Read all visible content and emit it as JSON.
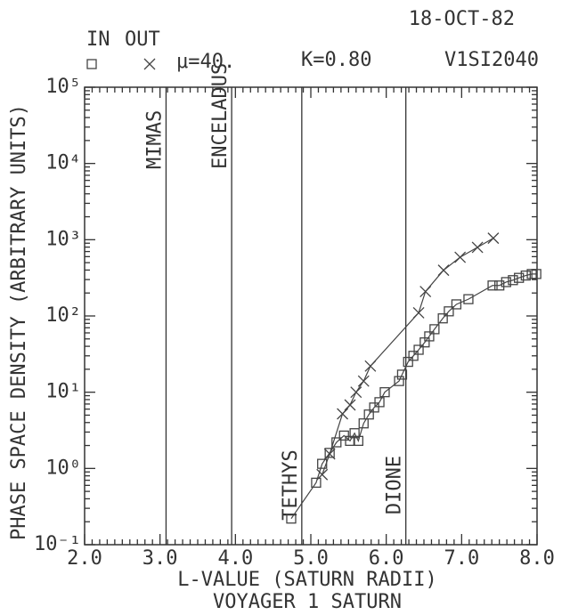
{
  "chart_data": {
    "type": "scatter",
    "date": "18-OCT-82",
    "mu": "μ=40.",
    "k": "K=0.80",
    "id": "V1SI2040",
    "xlabel": "L-VALUE (SATURN RADII)",
    "subtitle": "VOYAGER 1 SATURN",
    "ylabel": "PHASE SPACE DENSITY (ARBITRARY UNITS)",
    "log_y": true,
    "xlim": [
      2,
      8
    ],
    "ylim": [
      0.1,
      100000
    ],
    "xticks": [
      {
        "value": 2,
        "label": "2.0"
      },
      {
        "value": 3,
        "label": "3.0"
      },
      {
        "value": 4,
        "label": "4.0"
      },
      {
        "value": 5,
        "label": "5.0"
      },
      {
        "value": 6,
        "label": "6.0"
      },
      {
        "value": 7,
        "label": "7.0"
      },
      {
        "value": 8,
        "label": "8.0"
      }
    ],
    "yticks": [
      {
        "value": 0.1,
        "label": "10⁻¹"
      },
      {
        "value": 1,
        "label": "10⁰"
      },
      {
        "value": 10,
        "label": "10¹"
      },
      {
        "value": 100,
        "label": "10²"
      },
      {
        "value": 1000,
        "label": "10³"
      },
      {
        "value": 10000,
        "label": "10⁴"
      },
      {
        "value": 100000,
        "label": "10⁵"
      }
    ],
    "annotations": [
      {
        "label": "MIMAS",
        "x": 3.08
      },
      {
        "label": "ENCELADUS",
        "x": 3.95
      },
      {
        "label": "TETHYS",
        "x": 4.88
      },
      {
        "label": "DIONE",
        "x": 6.26
      }
    ],
    "series": [
      {
        "name": "IN",
        "marker": "square",
        "color": "#444",
        "x": [
          4.74,
          5.07,
          5.15,
          5.25,
          5.34,
          5.44,
          5.52,
          5.58,
          5.63,
          5.7,
          5.77,
          5.84,
          5.91,
          5.98,
          6.17,
          6.21,
          6.29,
          6.36,
          6.43,
          6.51,
          6.57,
          6.64,
          6.75,
          6.83,
          6.93,
          7.09,
          7.41,
          7.5,
          7.59,
          7.68,
          7.76,
          7.85,
          7.93,
          7.99
        ],
        "values": [
          0.22,
          0.65,
          1.15,
          1.6,
          2.2,
          2.7,
          2.3,
          2.9,
          2.3,
          3.9,
          5.1,
          6.3,
          7.4,
          10,
          14,
          17,
          25,
          30,
          36,
          45,
          54,
          67,
          93,
          115,
          142,
          166,
          251,
          251,
          278,
          295,
          316,
          339,
          355,
          355
        ]
      },
      {
        "name": "OUT",
        "marker": "cross",
        "color": "#444",
        "x": [
          5.15,
          5.25,
          5.42,
          5.52,
          5.6,
          5.7,
          5.79,
          6.43,
          6.52,
          6.76,
          6.98,
          7.21,
          7.42
        ],
        "values": [
          0.83,
          1.55,
          5.2,
          6.8,
          10,
          14,
          22,
          110,
          209,
          398,
          589,
          794,
          1047
        ]
      }
    ]
  }
}
